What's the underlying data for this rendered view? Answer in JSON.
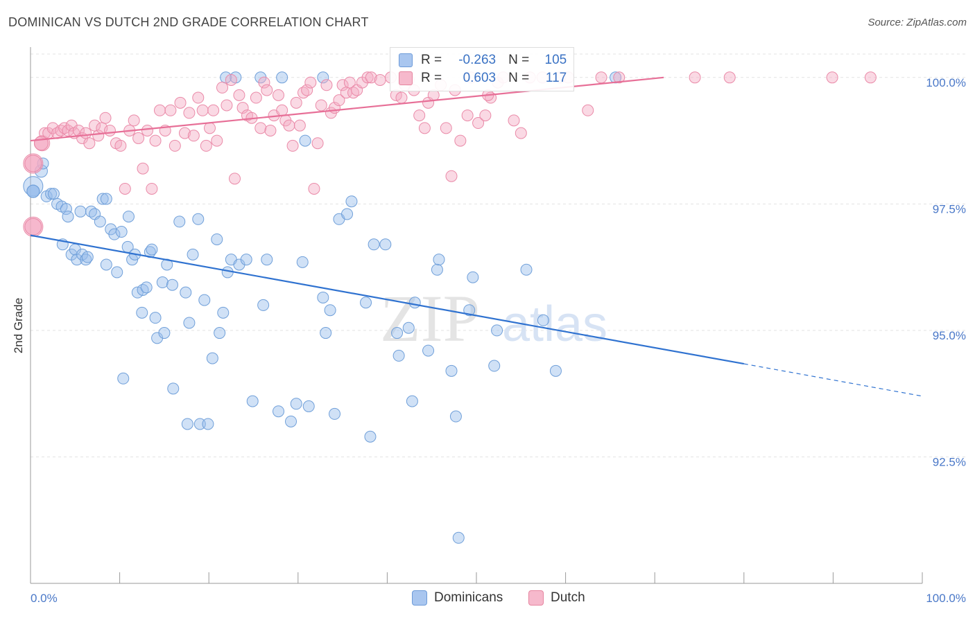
{
  "header": {
    "title": "DOMINICAN VS DUTCH 2ND GRADE CORRELATION CHART",
    "source": "Source: ZipAtlas.com"
  },
  "watermark": {
    "zip": "ZIP",
    "atlas": "atlas"
  },
  "legend": {
    "rows": [
      {
        "r_label": "R =",
        "r_value": "-0.263",
        "n_label": "N =",
        "n_value": "105",
        "color": "#a9c6ef",
        "border": "#6c9ad8"
      },
      {
        "r_label": "R =",
        "r_value": "0.603",
        "n_label": "N =",
        "n_value": "117",
        "color": "#f6b9cc",
        "border": "#e6849f"
      }
    ]
  },
  "bottom_legend": [
    {
      "label": "Dominicans",
      "color": "#a9c6ef",
      "border": "#6c9ad8"
    },
    {
      "label": "Dutch",
      "color": "#f6b9cc",
      "border": "#e6849f"
    }
  ],
  "colors": {
    "blue_fill": "rgba(150,188,236,0.45)",
    "blue_stroke": "#6f9fd9",
    "blue_line": "#2f72d0",
    "pink_fill": "rgba(245,170,196,0.45)",
    "pink_stroke": "#ea8aa8",
    "pink_line": "#e76f97",
    "tick_label": "#4a78c8",
    "grid": "#e3e3e3"
  },
  "chart_data": {
    "type": "scatter",
    "title": "DOMINICAN VS DUTCH 2ND GRADE CORRELATION CHART",
    "xlabel": "",
    "ylabel": "2nd Grade",
    "xlim": [
      0,
      100
    ],
    "ylim": [
      90.0,
      100.6
    ],
    "x_tick_labels": [
      "0.0%",
      "100.0%"
    ],
    "y_ticks": [
      92.5,
      95.0,
      97.5,
      100.0
    ],
    "y_tick_labels": [
      "92.5%",
      "95.0%",
      "97.5%",
      "100.0%"
    ],
    "grid": true,
    "legend_placement": "top-center",
    "series": [
      {
        "name": "Dominicans",
        "r": -0.263,
        "n": 105,
        "trend": {
          "x0": 0,
          "y0": 96.88,
          "x1": 80,
          "y1": 94.34,
          "dashed_to_x": 100,
          "dashed_to_y": 93.7
        },
        "points": [
          [
            0.3,
            97.85,
            14
          ],
          [
            1.2,
            98.15,
            9
          ],
          [
            1.4,
            98.3,
            8
          ],
          [
            1.8,
            97.65,
            8
          ],
          [
            2.3,
            97.7,
            8
          ],
          [
            2.6,
            97.7,
            8
          ],
          [
            3.0,
            97.5,
            8
          ],
          [
            3.5,
            97.45,
            8
          ],
          [
            4.0,
            97.4,
            8
          ],
          [
            4.2,
            97.25,
            8
          ],
          [
            3.6,
            96.7,
            8
          ],
          [
            4.6,
            96.5,
            8
          ],
          [
            5.0,
            96.6,
            8
          ],
          [
            5.2,
            96.4,
            8
          ],
          [
            5.8,
            96.5,
            8
          ],
          [
            6.2,
            96.4,
            8
          ],
          [
            6.4,
            96.45,
            8
          ],
          [
            5.6,
            97.35,
            8
          ],
          [
            6.8,
            97.35,
            8
          ],
          [
            7.2,
            97.3,
            8
          ],
          [
            7.8,
            97.15,
            8
          ],
          [
            8.1,
            97.6,
            8
          ],
          [
            8.5,
            97.6,
            8
          ],
          [
            8.5,
            96.3,
            8
          ],
          [
            9.0,
            97.0,
            8
          ],
          [
            9.4,
            96.9,
            8
          ],
          [
            9.7,
            96.15,
            8
          ],
          [
            10.2,
            96.95,
            8
          ],
          [
            10.9,
            96.65,
            8
          ],
          [
            11.0,
            97.25,
            8
          ],
          [
            11.4,
            96.4,
            8
          ],
          [
            11.7,
            96.5,
            8
          ],
          [
            12.0,
            95.75,
            8
          ],
          [
            12.6,
            95.8,
            8
          ],
          [
            13.0,
            95.85,
            8
          ],
          [
            13.4,
            96.55,
            8
          ],
          [
            13.6,
            96.6,
            8
          ],
          [
            12.5,
            95.35,
            8
          ],
          [
            14.0,
            95.25,
            8
          ],
          [
            14.2,
            94.85,
            8
          ],
          [
            14.8,
            95.95,
            8
          ],
          [
            15.0,
            94.95,
            8
          ],
          [
            15.3,
            96.3,
            8
          ],
          [
            15.9,
            95.9,
            8
          ],
          [
            10.4,
            94.05,
            8
          ],
          [
            16.0,
            93.85,
            8
          ],
          [
            16.7,
            97.15,
            8
          ],
          [
            17.4,
            95.75,
            8
          ],
          [
            17.6,
            93.15,
            8
          ],
          [
            17.8,
            95.15,
            8
          ],
          [
            18.2,
            96.5,
            8
          ],
          [
            18.8,
            97.2,
            8
          ],
          [
            19.0,
            93.15,
            8
          ],
          [
            19.5,
            95.6,
            8
          ],
          [
            19.9,
            93.15,
            8
          ],
          [
            20.4,
            94.45,
            8
          ],
          [
            20.9,
            96.8,
            8
          ],
          [
            21.2,
            94.95,
            8
          ],
          [
            21.6,
            95.35,
            8
          ],
          [
            22.1,
            96.15,
            8
          ],
          [
            22.5,
            96.4,
            8
          ],
          [
            23.4,
            96.3,
            8
          ],
          [
            24.2,
            96.4,
            8
          ],
          [
            24.9,
            93.6,
            8
          ],
          [
            26.1,
            95.5,
            8
          ],
          [
            26.5,
            96.4,
            8
          ],
          [
            27.8,
            93.4,
            8
          ],
          [
            29.2,
            93.2,
            8
          ],
          [
            29.8,
            93.55,
            8
          ],
          [
            30.5,
            96.35,
            8
          ],
          [
            30.8,
            98.75,
            8
          ],
          [
            31.2,
            93.5,
            8
          ],
          [
            32.8,
            95.65,
            8
          ],
          [
            33.1,
            94.95,
            8
          ],
          [
            33.6,
            95.4,
            8
          ],
          [
            34.1,
            93.35,
            8
          ],
          [
            34.6,
            97.2,
            8
          ],
          [
            35.5,
            97.3,
            8
          ],
          [
            36.0,
            97.55,
            8
          ],
          [
            37.6,
            95.55,
            8
          ],
          [
            38.1,
            92.9,
            8
          ],
          [
            38.5,
            96.7,
            8
          ],
          [
            39.8,
            96.7,
            8
          ],
          [
            41.1,
            94.95,
            8
          ],
          [
            41.3,
            94.5,
            8
          ],
          [
            42.4,
            95.05,
            8
          ],
          [
            42.8,
            93.6,
            8
          ],
          [
            43.1,
            95.55,
            8
          ],
          [
            44.6,
            94.6,
            8
          ],
          [
            45.6,
            96.2,
            8
          ],
          [
            45.8,
            96.4,
            8
          ],
          [
            47.7,
            93.3,
            8
          ],
          [
            47.2,
            94.2,
            8
          ],
          [
            48.0,
            90.9,
            8
          ],
          [
            49.2,
            95.4,
            8
          ],
          [
            49.6,
            96.05,
            8
          ],
          [
            52.0,
            94.3,
            8
          ],
          [
            52.3,
            95.0,
            8
          ],
          [
            55.6,
            96.2,
            8
          ],
          [
            57.5,
            95.2,
            8
          ],
          [
            58.9,
            94.2,
            8
          ],
          [
            21.9,
            100.0,
            8
          ],
          [
            23.0,
            100.0,
            8
          ],
          [
            25.8,
            100.0,
            8
          ],
          [
            28.2,
            100.0,
            8
          ],
          [
            32.8,
            100.0,
            8
          ],
          [
            65.6,
            100.0,
            8
          ],
          [
            0.3,
            97.75,
            9
          ],
          [
            0.3,
            97.75,
            9
          ],
          [
            0.3,
            97.75,
            9
          ]
        ]
      },
      {
        "name": "Dutch",
        "r": 0.603,
        "n": 117,
        "trend": {
          "x0": 0,
          "y0": 98.75,
          "x1": 71,
          "y1": 100.0
        },
        "points": [
          [
            0.3,
            98.3,
            14
          ],
          [
            0.3,
            97.05,
            14
          ],
          [
            1.3,
            98.7,
            11
          ],
          [
            1.6,
            98.9,
            8
          ],
          [
            2.0,
            98.9,
            8
          ],
          [
            2.5,
            99.0,
            8
          ],
          [
            3.0,
            98.9,
            8
          ],
          [
            3.4,
            98.95,
            8
          ],
          [
            3.8,
            99.0,
            8
          ],
          [
            4.2,
            98.95,
            8
          ],
          [
            4.6,
            99.05,
            8
          ],
          [
            4.9,
            98.9,
            8
          ],
          [
            5.4,
            98.95,
            8
          ],
          [
            5.8,
            98.8,
            8
          ],
          [
            6.2,
            98.9,
            8
          ],
          [
            6.6,
            98.7,
            8
          ],
          [
            7.2,
            99.05,
            8
          ],
          [
            7.6,
            98.85,
            8
          ],
          [
            8.0,
            99.0,
            8
          ],
          [
            8.4,
            99.2,
            8
          ],
          [
            8.9,
            98.95,
            8
          ],
          [
            9.6,
            98.7,
            8
          ],
          [
            10.1,
            98.65,
            8
          ],
          [
            10.6,
            97.8,
            8
          ],
          [
            11.1,
            98.95,
            8
          ],
          [
            11.6,
            99.15,
            8
          ],
          [
            12.1,
            98.8,
            8
          ],
          [
            12.6,
            98.2,
            8
          ],
          [
            13.1,
            98.95,
            8
          ],
          [
            13.6,
            97.8,
            8
          ],
          [
            14.0,
            98.75,
            8
          ],
          [
            14.5,
            99.35,
            8
          ],
          [
            15.1,
            98.95,
            8
          ],
          [
            15.7,
            99.35,
            8
          ],
          [
            16.2,
            98.65,
            8
          ],
          [
            16.8,
            99.5,
            8
          ],
          [
            17.3,
            98.9,
            8
          ],
          [
            17.8,
            99.3,
            8
          ],
          [
            18.3,
            98.85,
            8
          ],
          [
            18.8,
            99.6,
            8
          ],
          [
            19.3,
            99.35,
            8
          ],
          [
            19.7,
            98.65,
            8
          ],
          [
            20.1,
            99.0,
            8
          ],
          [
            20.5,
            99.35,
            8
          ],
          [
            20.9,
            98.75,
            8
          ],
          [
            21.5,
            99.8,
            8
          ],
          [
            22.0,
            99.45,
            8
          ],
          [
            22.5,
            99.95,
            8
          ],
          [
            22.9,
            98.0,
            8
          ],
          [
            23.4,
            99.65,
            8
          ],
          [
            23.8,
            99.4,
            8
          ],
          [
            24.3,
            99.25,
            8
          ],
          [
            24.8,
            99.2,
            8
          ],
          [
            25.3,
            99.6,
            8
          ],
          [
            25.8,
            99.0,
            8
          ],
          [
            26.2,
            99.9,
            8
          ],
          [
            26.5,
            99.75,
            8
          ],
          [
            26.9,
            98.95,
            8
          ],
          [
            27.3,
            99.25,
            8
          ],
          [
            27.8,
            99.65,
            8
          ],
          [
            28.2,
            99.35,
            8
          ],
          [
            28.6,
            99.15,
            8
          ],
          [
            29.0,
            99.05,
            8
          ],
          [
            29.4,
            98.65,
            8
          ],
          [
            29.8,
            99.5,
            8
          ],
          [
            30.2,
            99.05,
            8
          ],
          [
            30.6,
            99.7,
            8
          ],
          [
            31.0,
            99.75,
            8
          ],
          [
            31.4,
            99.9,
            8
          ],
          [
            31.8,
            97.8,
            8
          ],
          [
            32.2,
            98.7,
            8
          ],
          [
            32.6,
            99.45,
            8
          ],
          [
            33.2,
            99.85,
            8
          ],
          [
            33.7,
            99.3,
            8
          ],
          [
            34.1,
            99.4,
            8
          ],
          [
            34.6,
            99.55,
            8
          ],
          [
            35.0,
            99.85,
            8
          ],
          [
            35.4,
            99.7,
            8
          ],
          [
            35.8,
            99.9,
            8
          ],
          [
            36.2,
            99.7,
            8
          ],
          [
            36.6,
            99.75,
            8
          ],
          [
            37.2,
            99.9,
            8
          ],
          [
            37.8,
            100.0,
            8
          ],
          [
            38.2,
            100.0,
            8
          ],
          [
            39.2,
            99.95,
            8
          ],
          [
            40.4,
            100.0,
            8
          ],
          [
            41.0,
            99.65,
            8
          ],
          [
            41.6,
            99.6,
            8
          ],
          [
            42.0,
            99.85,
            8
          ],
          [
            42.4,
            99.95,
            8
          ],
          [
            43.0,
            99.75,
            8
          ],
          [
            43.6,
            99.25,
            8
          ],
          [
            44.2,
            99.0,
            8
          ],
          [
            44.6,
            99.5,
            8
          ],
          [
            45.2,
            99.65,
            8
          ],
          [
            46.0,
            99.85,
            8
          ],
          [
            46.6,
            99.0,
            8
          ],
          [
            47.2,
            98.05,
            8
          ],
          [
            47.6,
            99.75,
            8
          ],
          [
            48.2,
            98.75,
            8
          ],
          [
            49.0,
            99.25,
            8
          ],
          [
            49.4,
            100.0,
            8
          ],
          [
            50.2,
            99.1,
            8
          ],
          [
            51.0,
            99.25,
            8
          ],
          [
            51.6,
            99.6,
            8
          ],
          [
            52.4,
            99.9,
            8
          ],
          [
            53.0,
            100.0,
            8
          ],
          [
            54.2,
            99.15,
            8
          ],
          [
            55.0,
            98.9,
            8
          ],
          [
            57.4,
            100.0,
            8
          ],
          [
            59.4,
            100.0,
            8
          ],
          [
            62.5,
            99.35,
            8
          ],
          [
            64.0,
            100.0,
            8
          ],
          [
            66.0,
            100.0,
            8
          ],
          [
            74.5,
            100.0,
            8
          ],
          [
            78.4,
            100.0,
            8
          ],
          [
            89.9,
            100.0,
            8
          ],
          [
            94.2,
            100.0,
            8
          ],
          [
            0.3,
            98.3,
            12
          ],
          [
            0.3,
            98.3,
            12
          ],
          [
            0.3,
            97.05,
            12
          ],
          [
            0.3,
            97.05,
            12
          ],
          [
            1.2,
            98.7,
            10
          ],
          [
            1.2,
            98.7,
            10
          ],
          [
            51.3,
            99.65,
            8
          ],
          [
            60.3,
            100.0,
            8
          ],
          [
            56.0,
            100.0,
            8
          ]
        ]
      }
    ]
  }
}
